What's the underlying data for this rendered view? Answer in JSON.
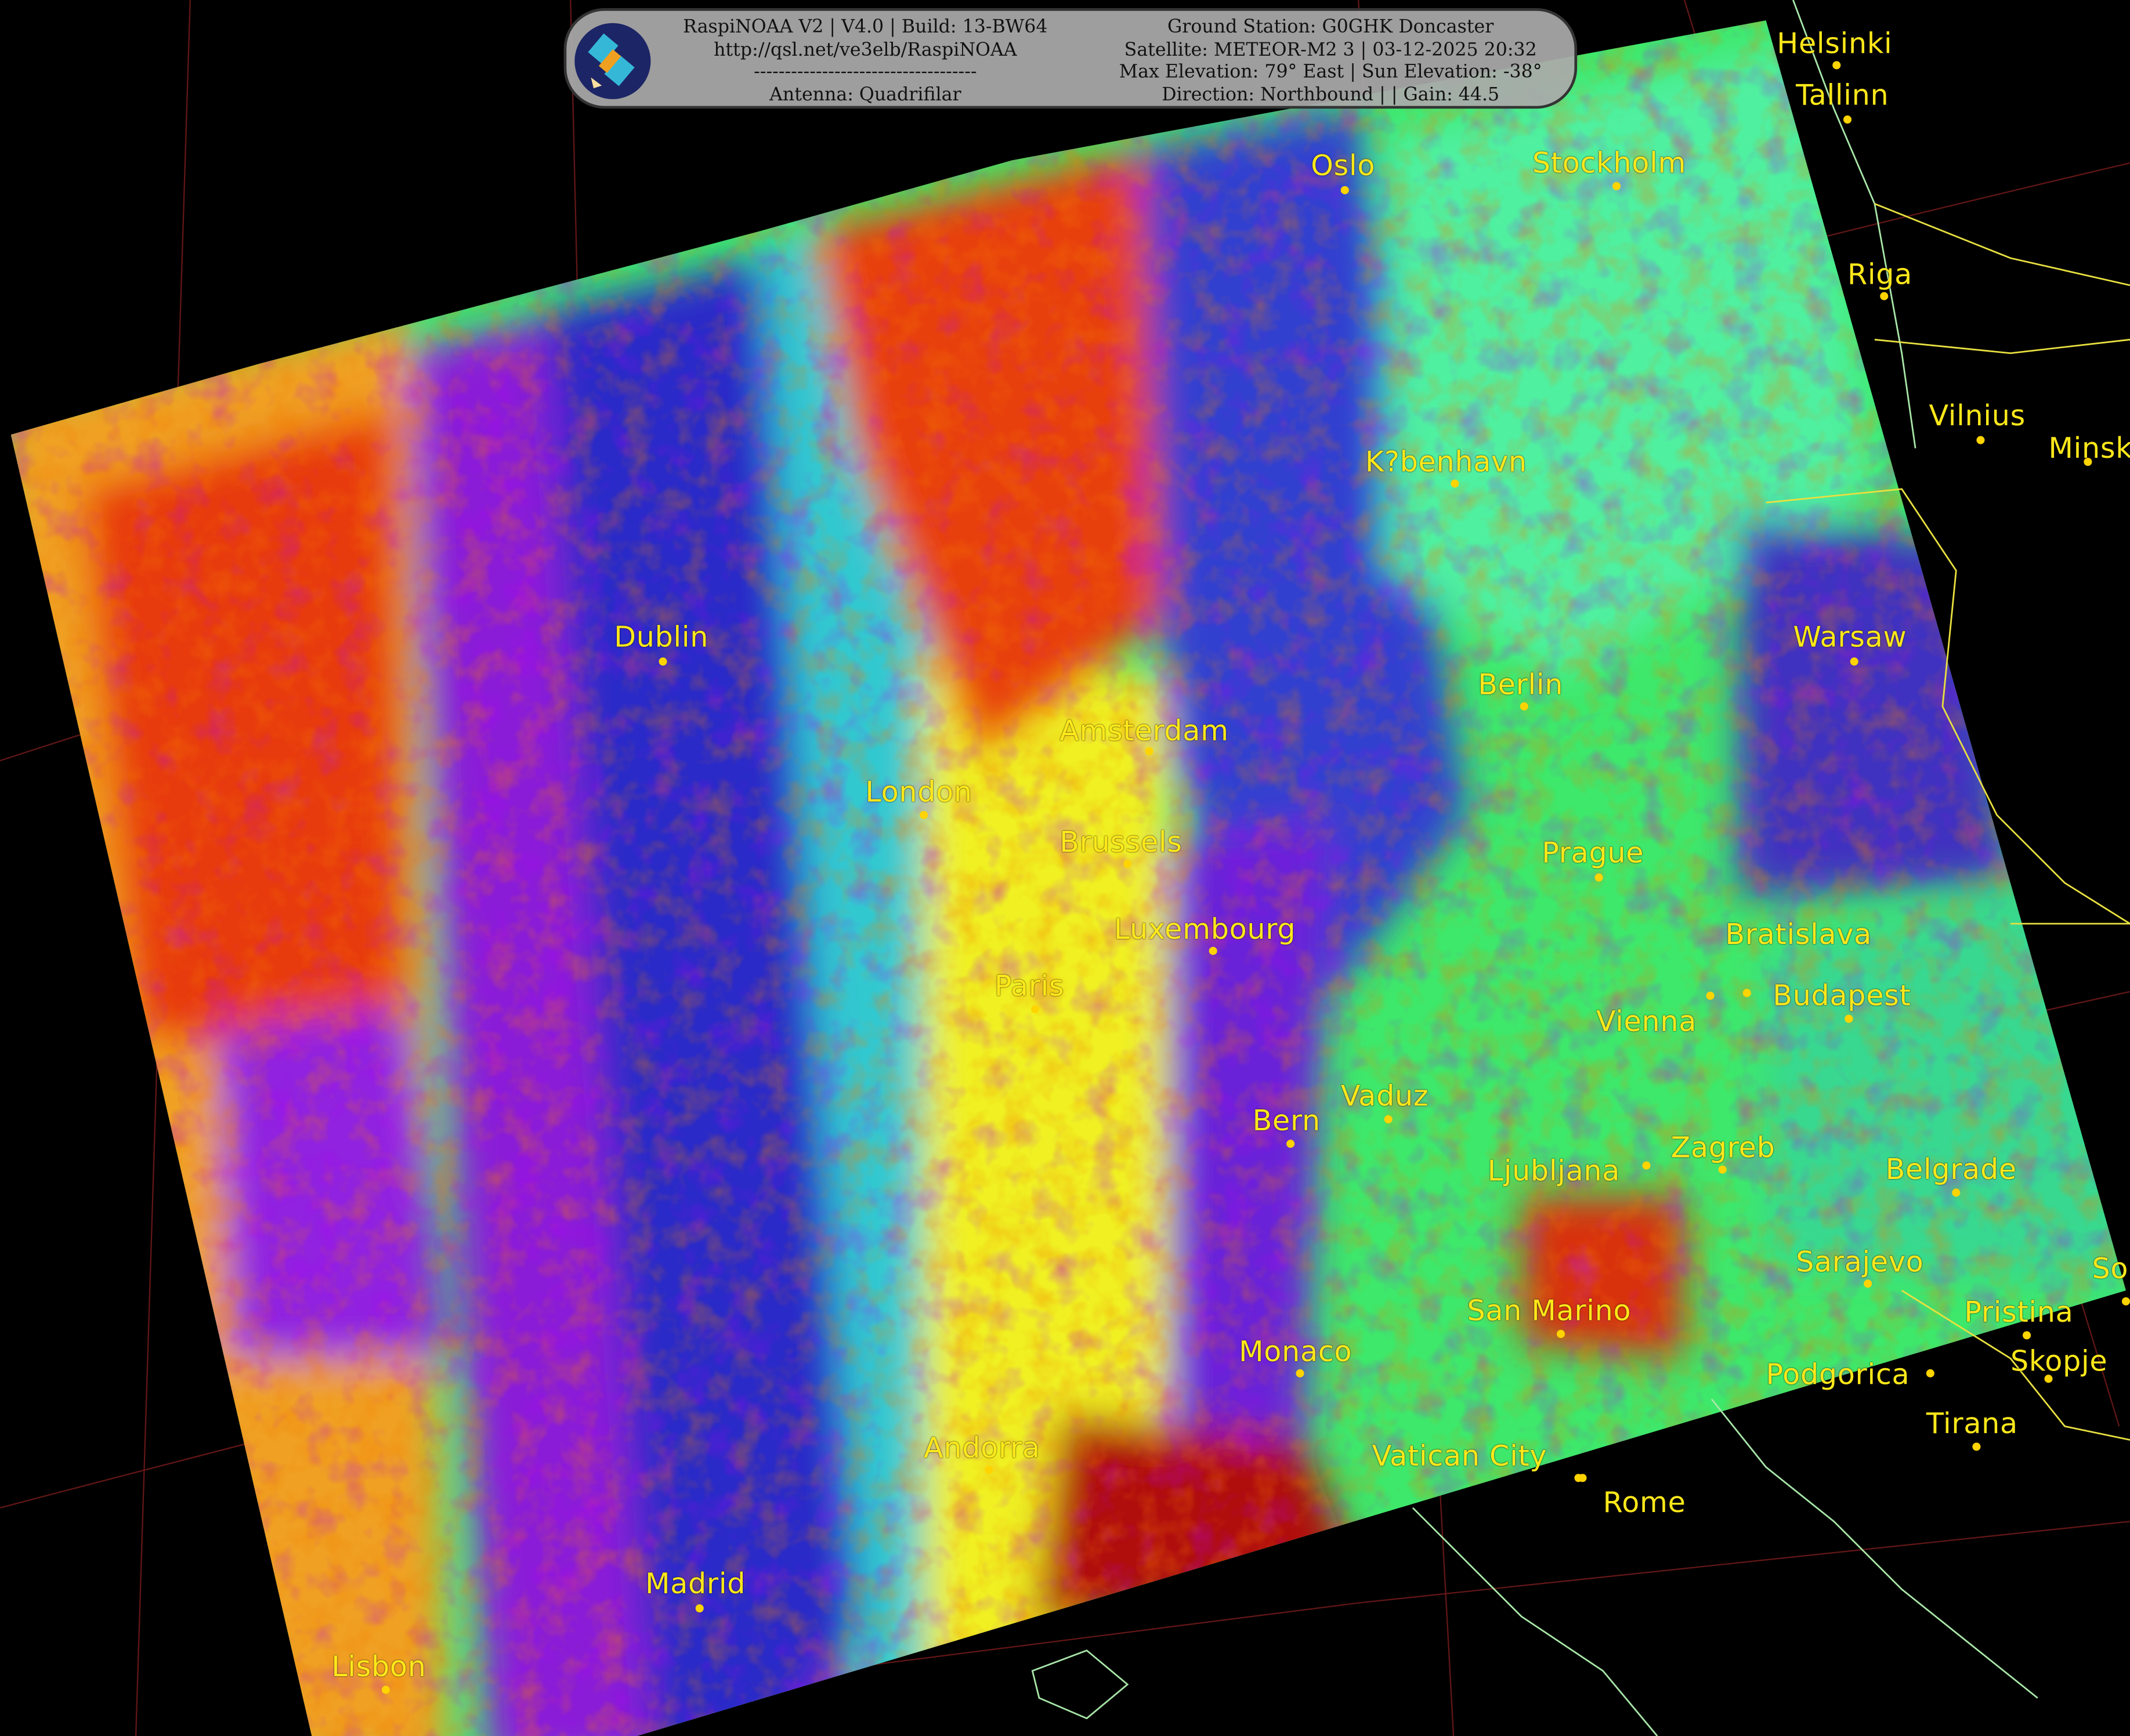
{
  "header": {
    "left_lines": [
      "RaspiNOAA V2 | V4.0 | Build: 13-BW64",
      "http://qsl.net/ve3elb/RaspiNOAA",
      "------------------------------------",
      "Antenna: Quadrifilar"
    ],
    "right_lines": [
      "Ground Station: G0GHK Doncaster",
      "Satellite: METEOR-M2 3 | 03-12-2025 20:32",
      "Max Elevation: 79° East | Sun Elevation: -38°",
      "Direction: Northbound | | Gain: 44.5"
    ],
    "logo_icon": "satellite-icon"
  },
  "cities": [
    {
      "name": "Helsinki"
    },
    {
      "name": "Tallinn"
    },
    {
      "name": "Oslo"
    },
    {
      "name": "Stockholm"
    },
    {
      "name": "Riga"
    },
    {
      "name": "Vilnius"
    },
    {
      "name": "Minsk"
    },
    {
      "name": "K?benhavn"
    },
    {
      "name": "Dublin"
    },
    {
      "name": "Berlin"
    },
    {
      "name": "Warsaw"
    },
    {
      "name": "Amsterdam"
    },
    {
      "name": "London"
    },
    {
      "name": "Brussels"
    },
    {
      "name": "Prague"
    },
    {
      "name": "Luxembourg"
    },
    {
      "name": "Vienna"
    },
    {
      "name": "Bratislava"
    },
    {
      "name": "Paris"
    },
    {
      "name": "Budapest"
    },
    {
      "name": "Vaduz"
    },
    {
      "name": "Bern"
    },
    {
      "name": "Ljubljana"
    },
    {
      "name": "Zagreb"
    },
    {
      "name": "Belgrade"
    },
    {
      "name": "Sarajevo"
    },
    {
      "name": "San Marino"
    },
    {
      "name": "Pristina"
    },
    {
      "name": "So"
    },
    {
      "name": "Monaco"
    },
    {
      "name": "Podgorica"
    },
    {
      "name": "Skopje"
    },
    {
      "name": "Tirana"
    },
    {
      "name": "Andorra"
    },
    {
      "name": "Vatican City"
    },
    {
      "name": "Rome"
    },
    {
      "name": "Madrid"
    },
    {
      "name": "Lisbon"
    }
  ],
  "colors": {
    "background": "#000000",
    "city_label": "#ffe81a",
    "coastline": "#a8e6a8",
    "border": "#e8e040",
    "graticule": "#8a2020"
  }
}
